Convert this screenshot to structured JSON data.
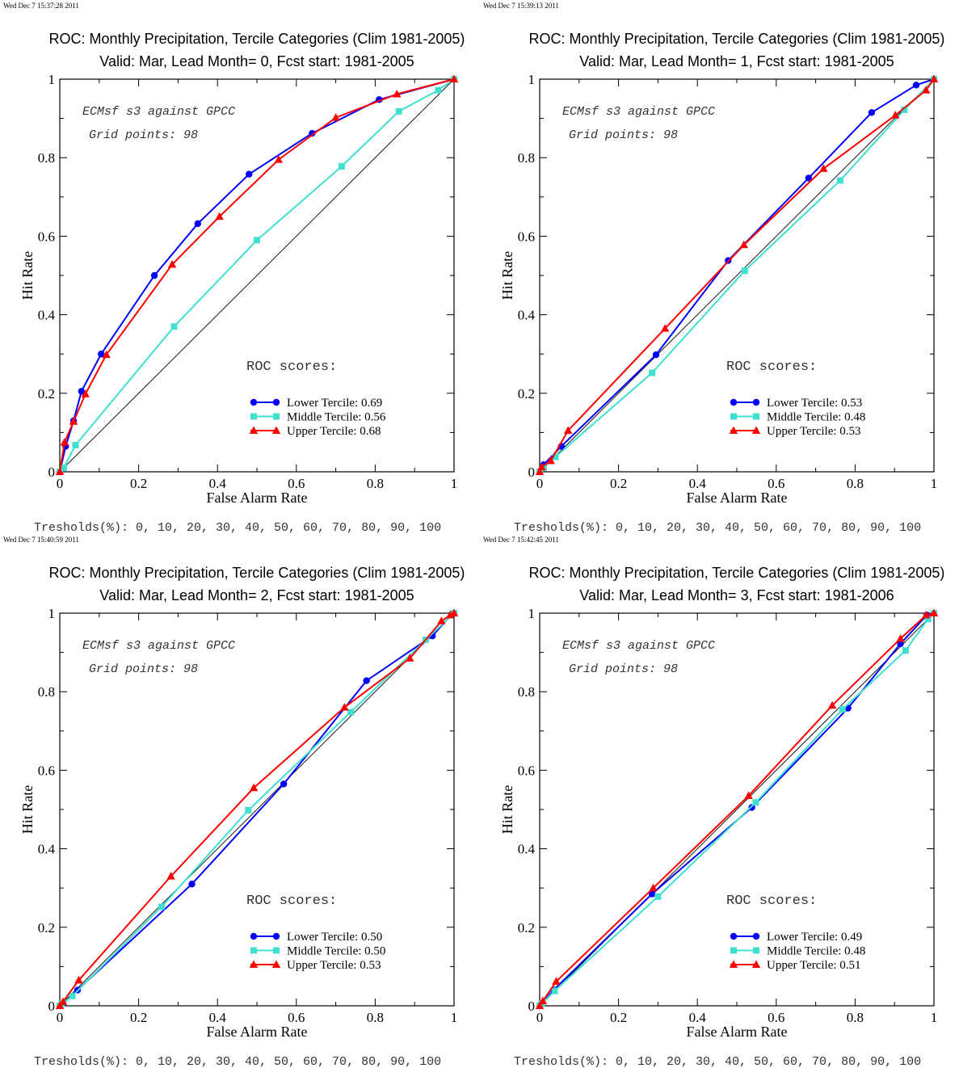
{
  "chart_data": [
    {
      "type": "line",
      "timestamp": "Wed Dec  7 15:37:28 2011",
      "title": "ROC: Monthly Precipitation, Tercile Categories (Clim 1981-2005)",
      "subtitle": "Valid: Mar, Lead Month= 0, Fcst start: 1981-2005",
      "xlabel": "False Alarm Rate",
      "ylabel": "Hit Rate",
      "xlim": [
        0,
        1
      ],
      "ylim": [
        0,
        1
      ],
      "x_ticks": [
        "0",
        "0.2",
        "0.4",
        "0.6",
        "0.8",
        "1"
      ],
      "y_ticks": [
        "0",
        "0.2",
        "0.4",
        "0.6",
        "0.8",
        "1"
      ],
      "annotation_source": "ECMsf s3 against GPCC",
      "annotation_grid": "Grid points:   98",
      "scores_heading": "ROC scores:",
      "thresholds": "Tresholds(%): 0, 10, 20, 30, 40, 50, 60, 70, 80, 90, 100",
      "series": [
        {
          "name": "Lower Tercile: 0.69",
          "color": "#0000ff",
          "marker": "circle",
          "x": [
            0,
            0.015,
            0.035,
            0.055,
            0.105,
            0.24,
            0.35,
            0.48,
            0.64,
            0.81,
            1.0
          ],
          "y": [
            0,
            0.065,
            0.13,
            0.205,
            0.3,
            0.5,
            0.632,
            0.758,
            0.862,
            0.948,
            1.0
          ]
        },
        {
          "name": "Middle Tercile: 0.56",
          "color": "#40e0d0",
          "marker": "square",
          "x": [
            0,
            0.01,
            0.04,
            0.29,
            0.5,
            0.715,
            0.86,
            0.96,
            1.0
          ],
          "y": [
            0,
            0.01,
            0.068,
            0.37,
            0.59,
            0.778,
            0.918,
            0.972,
            1.0
          ]
        },
        {
          "name": "Upper Tercile: 0.68",
          "color": "#ff0000",
          "marker": "triangle",
          "x": [
            0,
            0.012,
            0.035,
            0.065,
            0.118,
            0.285,
            0.405,
            0.555,
            0.7,
            0.855,
            1.0
          ],
          "y": [
            0,
            0.075,
            0.128,
            0.198,
            0.298,
            0.528,
            0.65,
            0.795,
            0.902,
            0.962,
            1.0
          ]
        }
      ]
    },
    {
      "type": "line",
      "timestamp": "Wed Dec  7 15:39:13 2011",
      "title": "ROC: Monthly Precipitation, Tercile Categories (Clim 1981-2005)",
      "subtitle": "Valid: Mar, Lead Month= 1, Fcst start: 1981-2005",
      "xlabel": "False Alarm Rate",
      "ylabel": "Hit Rate",
      "xlim": [
        0,
        1
      ],
      "ylim": [
        0,
        1
      ],
      "x_ticks": [
        "0",
        "0.2",
        "0.4",
        "0.6",
        "0.8",
        "1"
      ],
      "y_ticks": [
        "0",
        "0.2",
        "0.4",
        "0.6",
        "0.8",
        "1"
      ],
      "annotation_source": "ECMsf s3 against GPCC",
      "annotation_grid": "Grid points:   98",
      "scores_heading": "ROC scores:",
      "thresholds": "Tresholds(%): 0, 10, 20, 30, 40, 50, 60, 70, 80, 90, 100",
      "series": [
        {
          "name": "Lower Tercile: 0.53",
          "color": "#0000ff",
          "marker": "circle",
          "x": [
            0,
            0.01,
            0.055,
            0.295,
            0.478,
            0.682,
            0.842,
            0.955,
            1.0
          ],
          "y": [
            0,
            0.018,
            0.065,
            0.298,
            0.538,
            0.748,
            0.915,
            0.985,
            1.0
          ]
        },
        {
          "name": "Middle Tercile: 0.48",
          "color": "#40e0d0",
          "marker": "square",
          "x": [
            0,
            0.01,
            0.04,
            0.285,
            0.52,
            0.762,
            0.925,
            1.0
          ],
          "y": [
            0,
            0.01,
            0.038,
            0.252,
            0.512,
            0.742,
            0.922,
            1.0
          ]
        },
        {
          "name": "Upper Tercile: 0.53",
          "color": "#ff0000",
          "marker": "triangle",
          "x": [
            0,
            0.005,
            0.028,
            0.072,
            0.318,
            0.518,
            0.72,
            0.902,
            0.98,
            1.0
          ],
          "y": [
            0,
            0.012,
            0.028,
            0.105,
            0.365,
            0.578,
            0.772,
            0.908,
            0.972,
            1.0
          ]
        }
      ]
    },
    {
      "type": "line",
      "timestamp": "Wed Dec  7 15:40:59 2011",
      "title": "ROC: Monthly Precipitation, Tercile Categories (Clim 1981-2005)",
      "subtitle": "Valid: Mar, Lead Month= 2, Fcst start: 1981-2005",
      "xlabel": "False Alarm Rate",
      "ylabel": "Hit Rate",
      "xlim": [
        0,
        1
      ],
      "ylim": [
        0,
        1
      ],
      "x_ticks": [
        "0",
        "0.2",
        "0.4",
        "0.6",
        "0.8",
        "1"
      ],
      "y_ticks": [
        "0",
        "0.2",
        "0.4",
        "0.6",
        "0.8",
        "1"
      ],
      "annotation_source": "ECMsf s3 against GPCC",
      "annotation_grid": "Grid points:   98",
      "scores_heading": "ROC scores:",
      "thresholds": "Tresholds(%): 0, 10, 20, 30, 40, 50, 60, 70, 80, 90, 100",
      "series": [
        {
          "name": "Lower Tercile: 0.50",
          "color": "#0000ff",
          "marker": "circle",
          "x": [
            0,
            0.008,
            0.045,
            0.335,
            0.568,
            0.778,
            0.945,
            0.995,
            1.0
          ],
          "y": [
            0,
            0.005,
            0.04,
            0.31,
            0.565,
            0.828,
            0.942,
            0.998,
            1.0
          ]
        },
        {
          "name": "Middle Tercile: 0.50",
          "color": "#40e0d0",
          "marker": "square",
          "x": [
            0,
            0.005,
            0.032,
            0.258,
            0.478,
            0.738,
            0.928,
            1.0
          ],
          "y": [
            0,
            0.005,
            0.025,
            0.252,
            0.498,
            0.748,
            0.932,
            1.0
          ]
        },
        {
          "name": "Upper Tercile: 0.53",
          "color": "#ff0000",
          "marker": "triangle",
          "x": [
            0,
            0.008,
            0.048,
            0.282,
            0.492,
            0.722,
            0.888,
            0.968,
            0.99,
            1.0
          ],
          "y": [
            0,
            0.01,
            0.065,
            0.33,
            0.555,
            0.76,
            0.885,
            0.98,
            0.995,
            1.0
          ]
        }
      ]
    },
    {
      "type": "line",
      "timestamp": "Wed Dec  7 15:42:45 2011",
      "title": "ROC: Monthly Precipitation, Tercile Categories (Clim 1981-2005)",
      "subtitle": "Valid: Mar, Lead Month= 3, Fcst start: 1981-2006",
      "xlabel": "False Alarm Rate",
      "ylabel": "Hit Rate",
      "xlim": [
        0,
        1
      ],
      "ylim": [
        0,
        1
      ],
      "x_ticks": [
        "0",
        "0.2",
        "0.4",
        "0.6",
        "0.8",
        "1"
      ],
      "y_ticks": [
        "0",
        "0.2",
        "0.4",
        "0.6",
        "0.8",
        "1"
      ],
      "annotation_source": "ECMsf s3 against GPCC",
      "annotation_grid": "Grid points:   98",
      "scores_heading": "ROC scores:",
      "thresholds": "Tresholds(%): 0, 10, 20, 30, 40, 50, 60, 70, 80, 90, 100",
      "series": [
        {
          "name": "Lower Tercile: 0.49",
          "color": "#0000ff",
          "marker": "circle",
          "x": [
            0,
            0.005,
            0.035,
            0.285,
            0.538,
            0.782,
            0.915,
            0.982,
            1.0
          ],
          "y": [
            0,
            0.005,
            0.04,
            0.285,
            0.505,
            0.758,
            0.922,
            0.995,
            1.0
          ]
        },
        {
          "name": "Middle Tercile: 0.48",
          "color": "#40e0d0",
          "marker": "square",
          "x": [
            0,
            0.005,
            0.038,
            0.3,
            0.548,
            0.768,
            0.928,
            0.985,
            1.0
          ],
          "y": [
            0,
            0.005,
            0.038,
            0.278,
            0.518,
            0.755,
            0.905,
            0.985,
            1.0
          ]
        },
        {
          "name": "Upper Tercile: 0.51",
          "color": "#ff0000",
          "marker": "triangle",
          "x": [
            0,
            0.008,
            0.042,
            0.288,
            0.53,
            0.742,
            0.915,
            0.98,
            1.0
          ],
          "y": [
            0,
            0.012,
            0.062,
            0.3,
            0.535,
            0.765,
            0.935,
            0.995,
            1.0
          ]
        }
      ]
    }
  ]
}
